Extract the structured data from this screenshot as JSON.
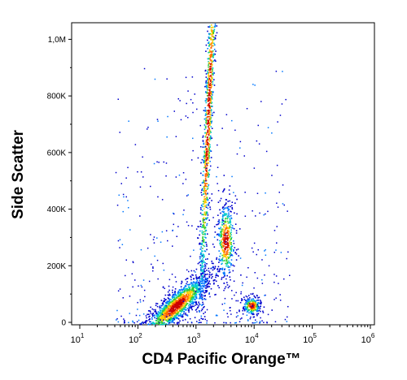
{
  "chart_data": {
    "type": "scatter",
    "subtype": "flow-cytometry-density-dot-plot",
    "xlabel": "CD4 Pacific Orange™",
    "ylabel": "Side Scatter",
    "x_scale": "log",
    "xlim": [
      10,
      1000000
    ],
    "y_scale": "linear",
    "ylim": [
      0,
      1050000
    ],
    "x_ticks": [
      {
        "value": 10,
        "base": "10",
        "exp": "1"
      },
      {
        "value": 100,
        "base": "10",
        "exp": "2"
      },
      {
        "value": 1000,
        "base": "10",
        "exp": "3"
      },
      {
        "value": 10000,
        "base": "10",
        "exp": "4"
      },
      {
        "value": 100000,
        "base": "10",
        "exp": "5"
      },
      {
        "value": 1000000,
        "base": "10",
        "exp": "6"
      }
    ],
    "y_ticks": [
      {
        "value": 0,
        "label": "0"
      },
      {
        "value": 200000,
        "label": "200K"
      },
      {
        "value": 400000,
        "label": "400K"
      },
      {
        "value": 600000,
        "label": "600K"
      },
      {
        "value": 800000,
        "label": "800K"
      },
      {
        "value": 1000000,
        "label": "1,0M"
      }
    ],
    "grid": false,
    "legend": "none",
    "color_scale": [
      "#0000cc",
      "#0077ff",
      "#00cccc",
      "#33cc33",
      "#ffcc00",
      "#ff6600",
      "#cc0000"
    ],
    "populations": [
      {
        "x_center": 450,
        "x_spread_decades": 0.3,
        "y_center": 60000,
        "y_spread": 28000,
        "tilt": 50000,
        "count": 1500
      },
      {
        "x_center": 1600,
        "x_spread_decades": 0.09,
        "y_center": 730000,
        "y_spread": 170000,
        "tilt": 380000,
        "count": 1300
      },
      {
        "x_center": 3200,
        "x_spread_decades": 0.08,
        "y_center": 290000,
        "y_spread": 70000,
        "tilt": 0,
        "count": 450
      },
      {
        "x_center": 9000,
        "x_spread_decades": 0.08,
        "y_center": 60000,
        "y_spread": 16000,
        "tilt": 0,
        "count": 260
      }
    ]
  }
}
